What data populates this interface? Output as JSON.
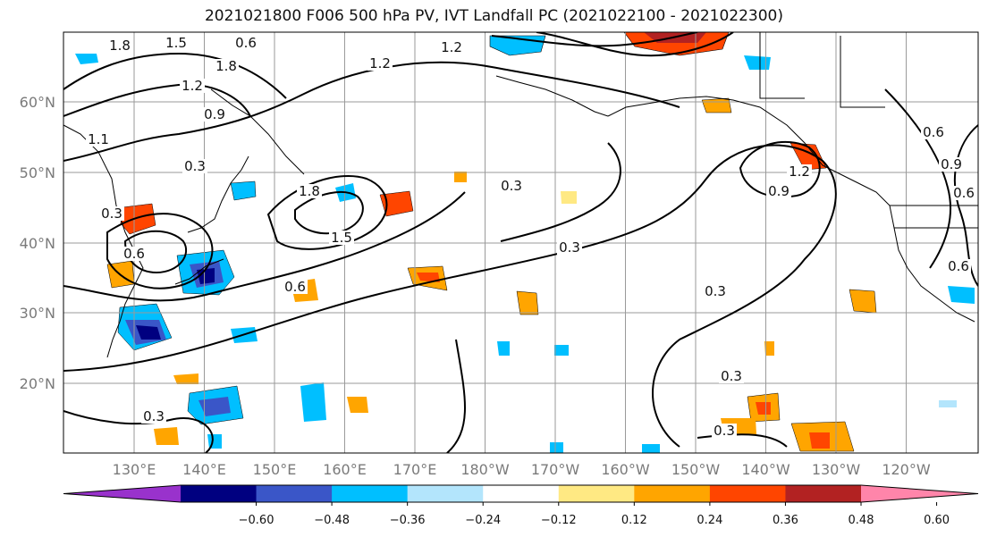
{
  "title": "2021021800 F006 500 hPa PV, IVT Landfall PC (2021022100 - 2021022300)",
  "map": {
    "lat_labels": [
      "60°N",
      "50°N",
      "40°N",
      "30°N",
      "20°N"
    ],
    "lon_labels": [
      "130°E",
      "140°E",
      "150°E",
      "160°E",
      "170°E",
      "180°W",
      "170°W",
      "160°W",
      "150°W",
      "140°W",
      "130°W",
      "120°W"
    ],
    "contour_labels": [
      "1.8",
      "1.5",
      "0.6",
      "1.2",
      "1.8",
      "1.2",
      "1.2",
      "0.9",
      "1.1",
      "0.3",
      "1.8",
      "0.3",
      "0.6",
      "1.5",
      "0.6",
      "0.3",
      "0.3",
      "0.3",
      "0.9",
      "1.2",
      "0.3",
      "0.3",
      "0.3",
      "0.9",
      "0.6",
      "0.6",
      "0.6"
    ]
  },
  "colorbar": {
    "colors": [
      "#9932cc",
      "#000080",
      "#3a56c8",
      "#00bfff",
      "#b3e5fc",
      "#ffffff",
      "#ffe983",
      "#ffa500",
      "#ff4500",
      "#b22222",
      "#ff85aa"
    ],
    "tick_labels": [
      "−0.60",
      "−0.48",
      "−0.36",
      "−0.24",
      "−0.12",
      "0.12",
      "0.24",
      "0.36",
      "0.48",
      "0.60"
    ]
  }
}
